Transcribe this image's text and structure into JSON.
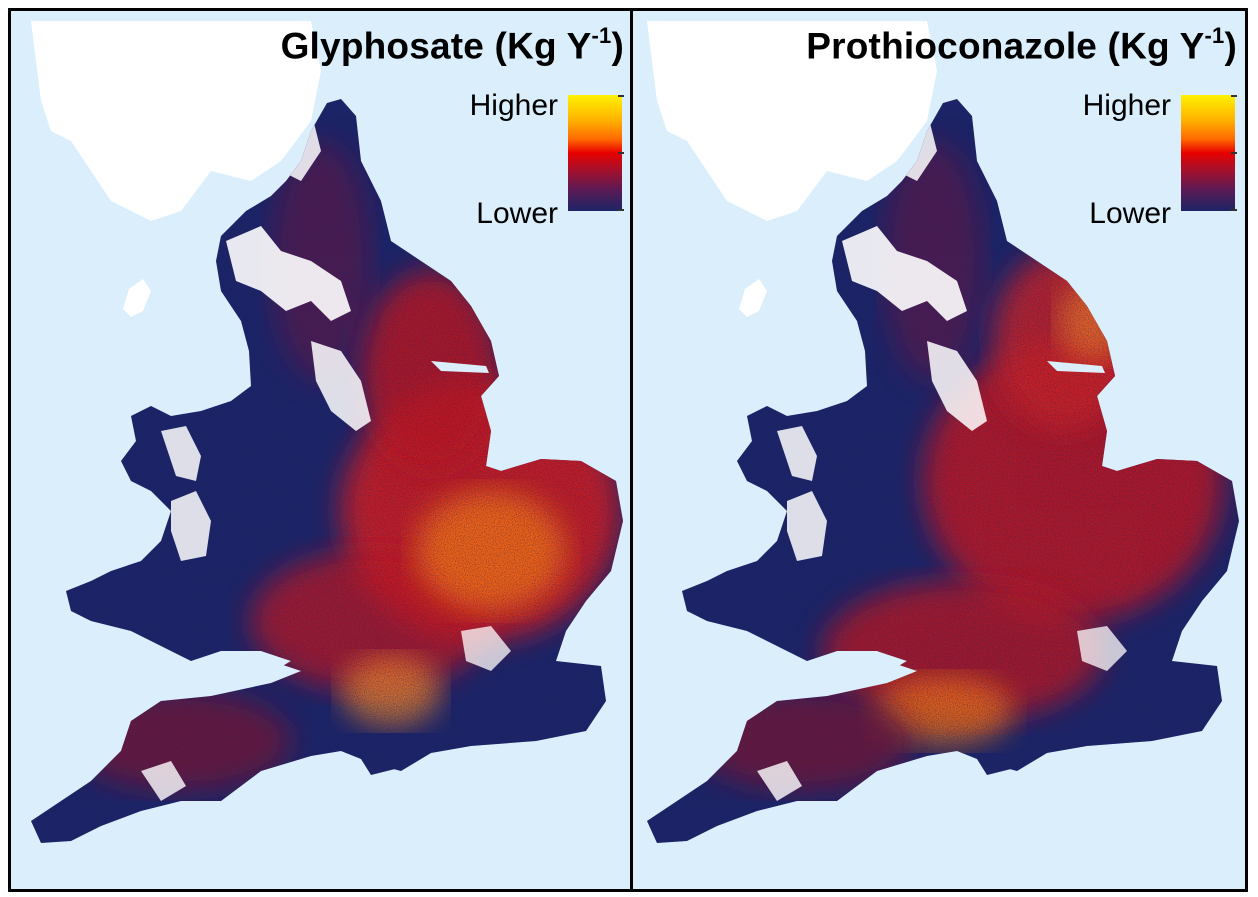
{
  "panels": [
    {
      "id": "glyphosate",
      "title_main": "Glyphosate (Kg Y",
      "title_sup": "-1",
      "title_end": ")",
      "legend": {
        "high_label": "Higher",
        "low_label": "Lower"
      },
      "hotspot": "east-anglia"
    },
    {
      "id": "prothioconazole",
      "title_main": "Prothioconazole (Kg Y",
      "title_sup": "-1",
      "title_end": ")",
      "legend": {
        "high_label": "Higher",
        "low_label": "Lower"
      },
      "hotspot": "midlands-south"
    }
  ],
  "colors": {
    "sea": "#daeffb",
    "land_unmapped": "#ffffff",
    "low": "#1c2466",
    "mid": "#e80000",
    "high": "#fff200"
  },
  "legend_ramp": [
    "#1c2466",
    "#5a1a55",
    "#a8102a",
    "#e80000",
    "#ff6a00",
    "#ffb000",
    "#fff200"
  ]
}
